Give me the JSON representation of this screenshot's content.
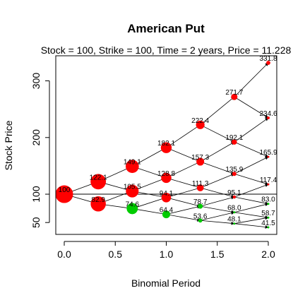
{
  "chart_data": {
    "type": "scatter",
    "title": "American Put",
    "subtitle": "Stock = 100, Strike = 100, Time = 2 years, Price = 11.228",
    "xlabel": "Binomial Period",
    "ylabel": "Stock Price",
    "xlim": [
      0,
      2
    ],
    "ylim": [
      41.5,
      331.8
    ],
    "x_ticks": [
      "0.0",
      "0.5",
      "1.0",
      "1.5",
      "2.0"
    ],
    "x_tick_values": [
      0,
      0.5,
      1,
      1.5,
      2
    ],
    "y_ticks": [
      "50",
      "100",
      "200",
      "300"
    ],
    "y_tick_values": [
      50,
      100,
      200,
      300
    ],
    "strike": 100,
    "node_colors": {
      "exercise": "#ff0000",
      "continue": "#00cc00"
    },
    "periods": [
      0,
      0.3333,
      0.6667,
      1,
      1.3333,
      1.6667,
      2
    ],
    "nodes": [
      [
        {
          "label": "100",
          "price": 100,
          "exercise": true
        }
      ],
      [
        {
          "label": "122.1",
          "price": 122.1,
          "exercise": true
        },
        {
          "label": "82.9",
          "price": 82.9,
          "exercise": true
        }
      ],
      [
        {
          "label": "149.1",
          "price": 149.1,
          "exercise": true
        },
        {
          "label": "105.5",
          "price": 105.5,
          "exercise": true
        },
        {
          "label": "74.6",
          "price": 74.6,
          "exercise": false
        }
      ],
      [
        {
          "label": "182.1",
          "price": 182.1,
          "exercise": true
        },
        {
          "label": "128.8",
          "price": 128.8,
          "exercise": true
        },
        {
          "label": "94.1",
          "price": 94.1,
          "exercise": true
        },
        {
          "label": "64.4",
          "price": 64.4,
          "exercise": false
        }
      ],
      [
        {
          "label": "222.4",
          "price": 222.4,
          "exercise": true
        },
        {
          "label": "157.3",
          "price": 157.3,
          "exercise": true
        },
        {
          "label": "111.3",
          "price": 111.3,
          "exercise": true
        },
        {
          "label": "78.7",
          "price": 78.7,
          "exercise": false
        },
        {
          "label": "53.6",
          "price": 53.6,
          "exercise": false
        }
      ],
      [
        {
          "label": "271.7",
          "price": 271.7,
          "exercise": true
        },
        {
          "label": "192.1",
          "price": 192.1,
          "exercise": true
        },
        {
          "label": "135.9",
          "price": 135.9,
          "exercise": true
        },
        {
          "label": "95.1",
          "price": 95.1,
          "exercise": true
        },
        {
          "label": "68.0",
          "price": 68.0,
          "exercise": false
        },
        {
          "label": "48.1",
          "price": 48.1,
          "exercise": false
        }
      ],
      [
        {
          "label": "331.8",
          "price": 331.8,
          "exercise": true
        },
        {
          "label": "234.6",
          "price": 234.6,
          "exercise": true
        },
        {
          "label": "165.9",
          "price": 165.9,
          "exercise": true
        },
        {
          "label": "117.4",
          "price": 117.4,
          "exercise": true
        },
        {
          "label": "83.0",
          "price": 83.0,
          "exercise": false
        },
        {
          "label": "58.7",
          "price": 58.7,
          "exercise": false
        },
        {
          "label": "41.5",
          "price": 41.5,
          "exercise": false
        }
      ]
    ]
  }
}
